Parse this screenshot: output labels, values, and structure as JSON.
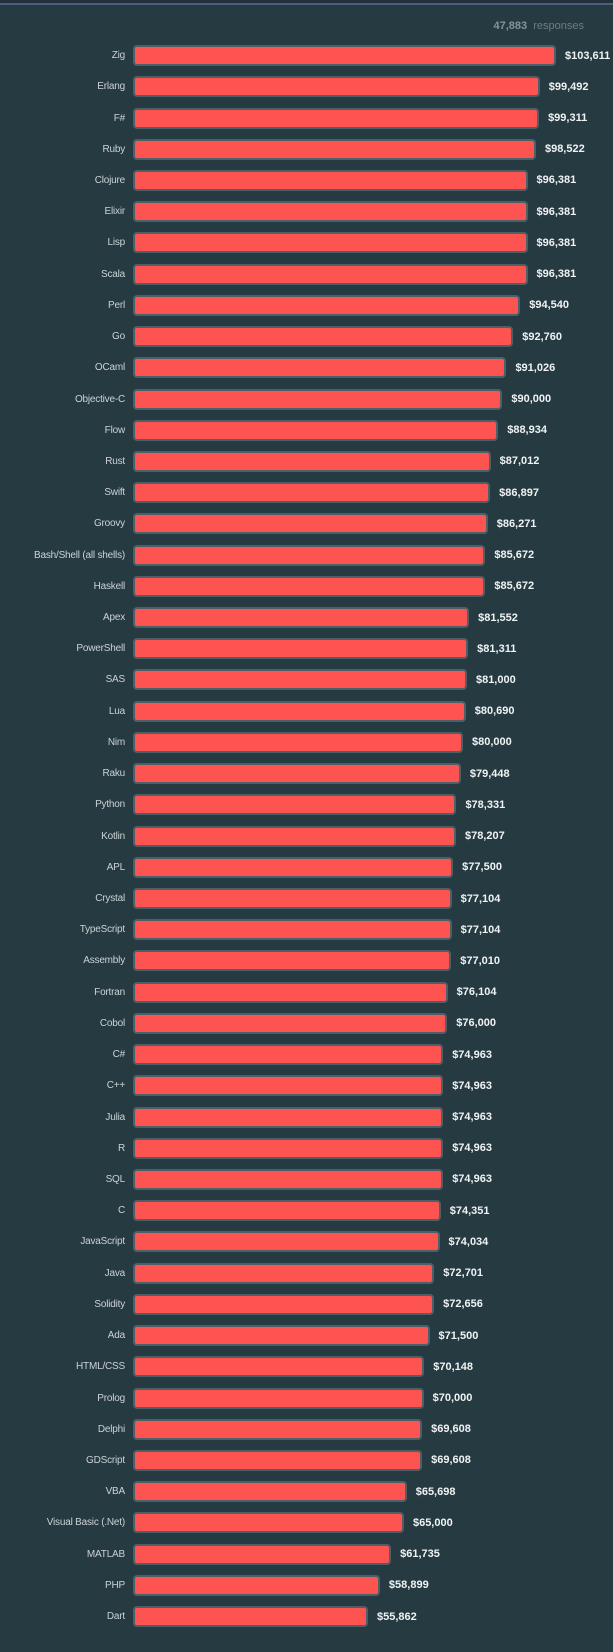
{
  "header": {
    "responses_count": "47,883",
    "responses_label": "responses"
  },
  "colors": {
    "background": "#263a42",
    "bar_fill": "#fd5351",
    "bar_border": "#4d6067",
    "value_text": "#f0f3f3",
    "label_text": "#ccd3d6",
    "header_count_text": "#84939b",
    "header_responses_text": "#6d7c85",
    "top_line": "#46617c"
  },
  "chart_data": {
    "type": "bar",
    "orientation": "horizontal",
    "title": "",
    "xlabel": "",
    "ylabel": "",
    "grid": false,
    "legend": false,
    "xlim": [
      0,
      103611
    ],
    "annotation": "47,883 responses",
    "categories": [
      "Zig",
      "Erlang",
      "F#",
      "Ruby",
      "Clojure",
      "Elixir",
      "Lisp",
      "Scala",
      "Perl",
      "Go",
      "OCaml",
      "Objective-C",
      "Flow",
      "Rust",
      "Swift",
      "Groovy",
      "Bash/Shell (all shells)",
      "Haskell",
      "Apex",
      "PowerShell",
      "SAS",
      "Lua",
      "Nim",
      "Raku",
      "Python",
      "Kotlin",
      "APL",
      "Crystal",
      "TypeScript",
      "Assembly",
      "Fortran",
      "Cobol",
      "C#",
      "C++",
      "Julia",
      "R",
      "SQL",
      "C",
      "JavaScript",
      "Java",
      "Solidity",
      "Ada",
      "HTML/CSS",
      "Prolog",
      "Delphi",
      "GDScript",
      "VBA",
      "Visual Basic (.Net)",
      "MATLAB",
      "PHP",
      "Dart"
    ],
    "values": [
      103611,
      99492,
      99311,
      98522,
      96381,
      96381,
      96381,
      96381,
      94540,
      92760,
      91026,
      90000,
      88934,
      87012,
      86897,
      86271,
      85672,
      85672,
      81552,
      81311,
      81000,
      80690,
      80000,
      79448,
      78331,
      78207,
      77500,
      77104,
      77104,
      77010,
      76104,
      76000,
      74963,
      74963,
      74963,
      74963,
      74963,
      74351,
      74034,
      72701,
      72656,
      71500,
      70148,
      70000,
      69608,
      69608,
      65698,
      65000,
      61735,
      58899,
      55862
    ],
    "value_labels": [
      "$103,611",
      "$99,492",
      "$99,311",
      "$98,522",
      "$96,381",
      "$96,381",
      "$96,381",
      "$96,381",
      "$94,540",
      "$92,760",
      "$91,026",
      "$90,000",
      "$88,934",
      "$87,012",
      "$86,897",
      "$86,271",
      "$85,672",
      "$85,672",
      "$81,552",
      "$81,311",
      "$81,000",
      "$80,690",
      "$80,000",
      "$79,448",
      "$78,331",
      "$78,207",
      "$77,500",
      "$77,104",
      "$77,104",
      "$77,010",
      "$76,104",
      "$76,000",
      "$74,963",
      "$74,963",
      "$74,963",
      "$74,963",
      "$74,963",
      "$74,351",
      "$74,034",
      "$72,701",
      "$72,656",
      "$71,500",
      "$70,148",
      "$70,000",
      "$69,608",
      "$69,608",
      "$65,698",
      "$65,000",
      "$61,735",
      "$58,899",
      "$55,862"
    ]
  }
}
